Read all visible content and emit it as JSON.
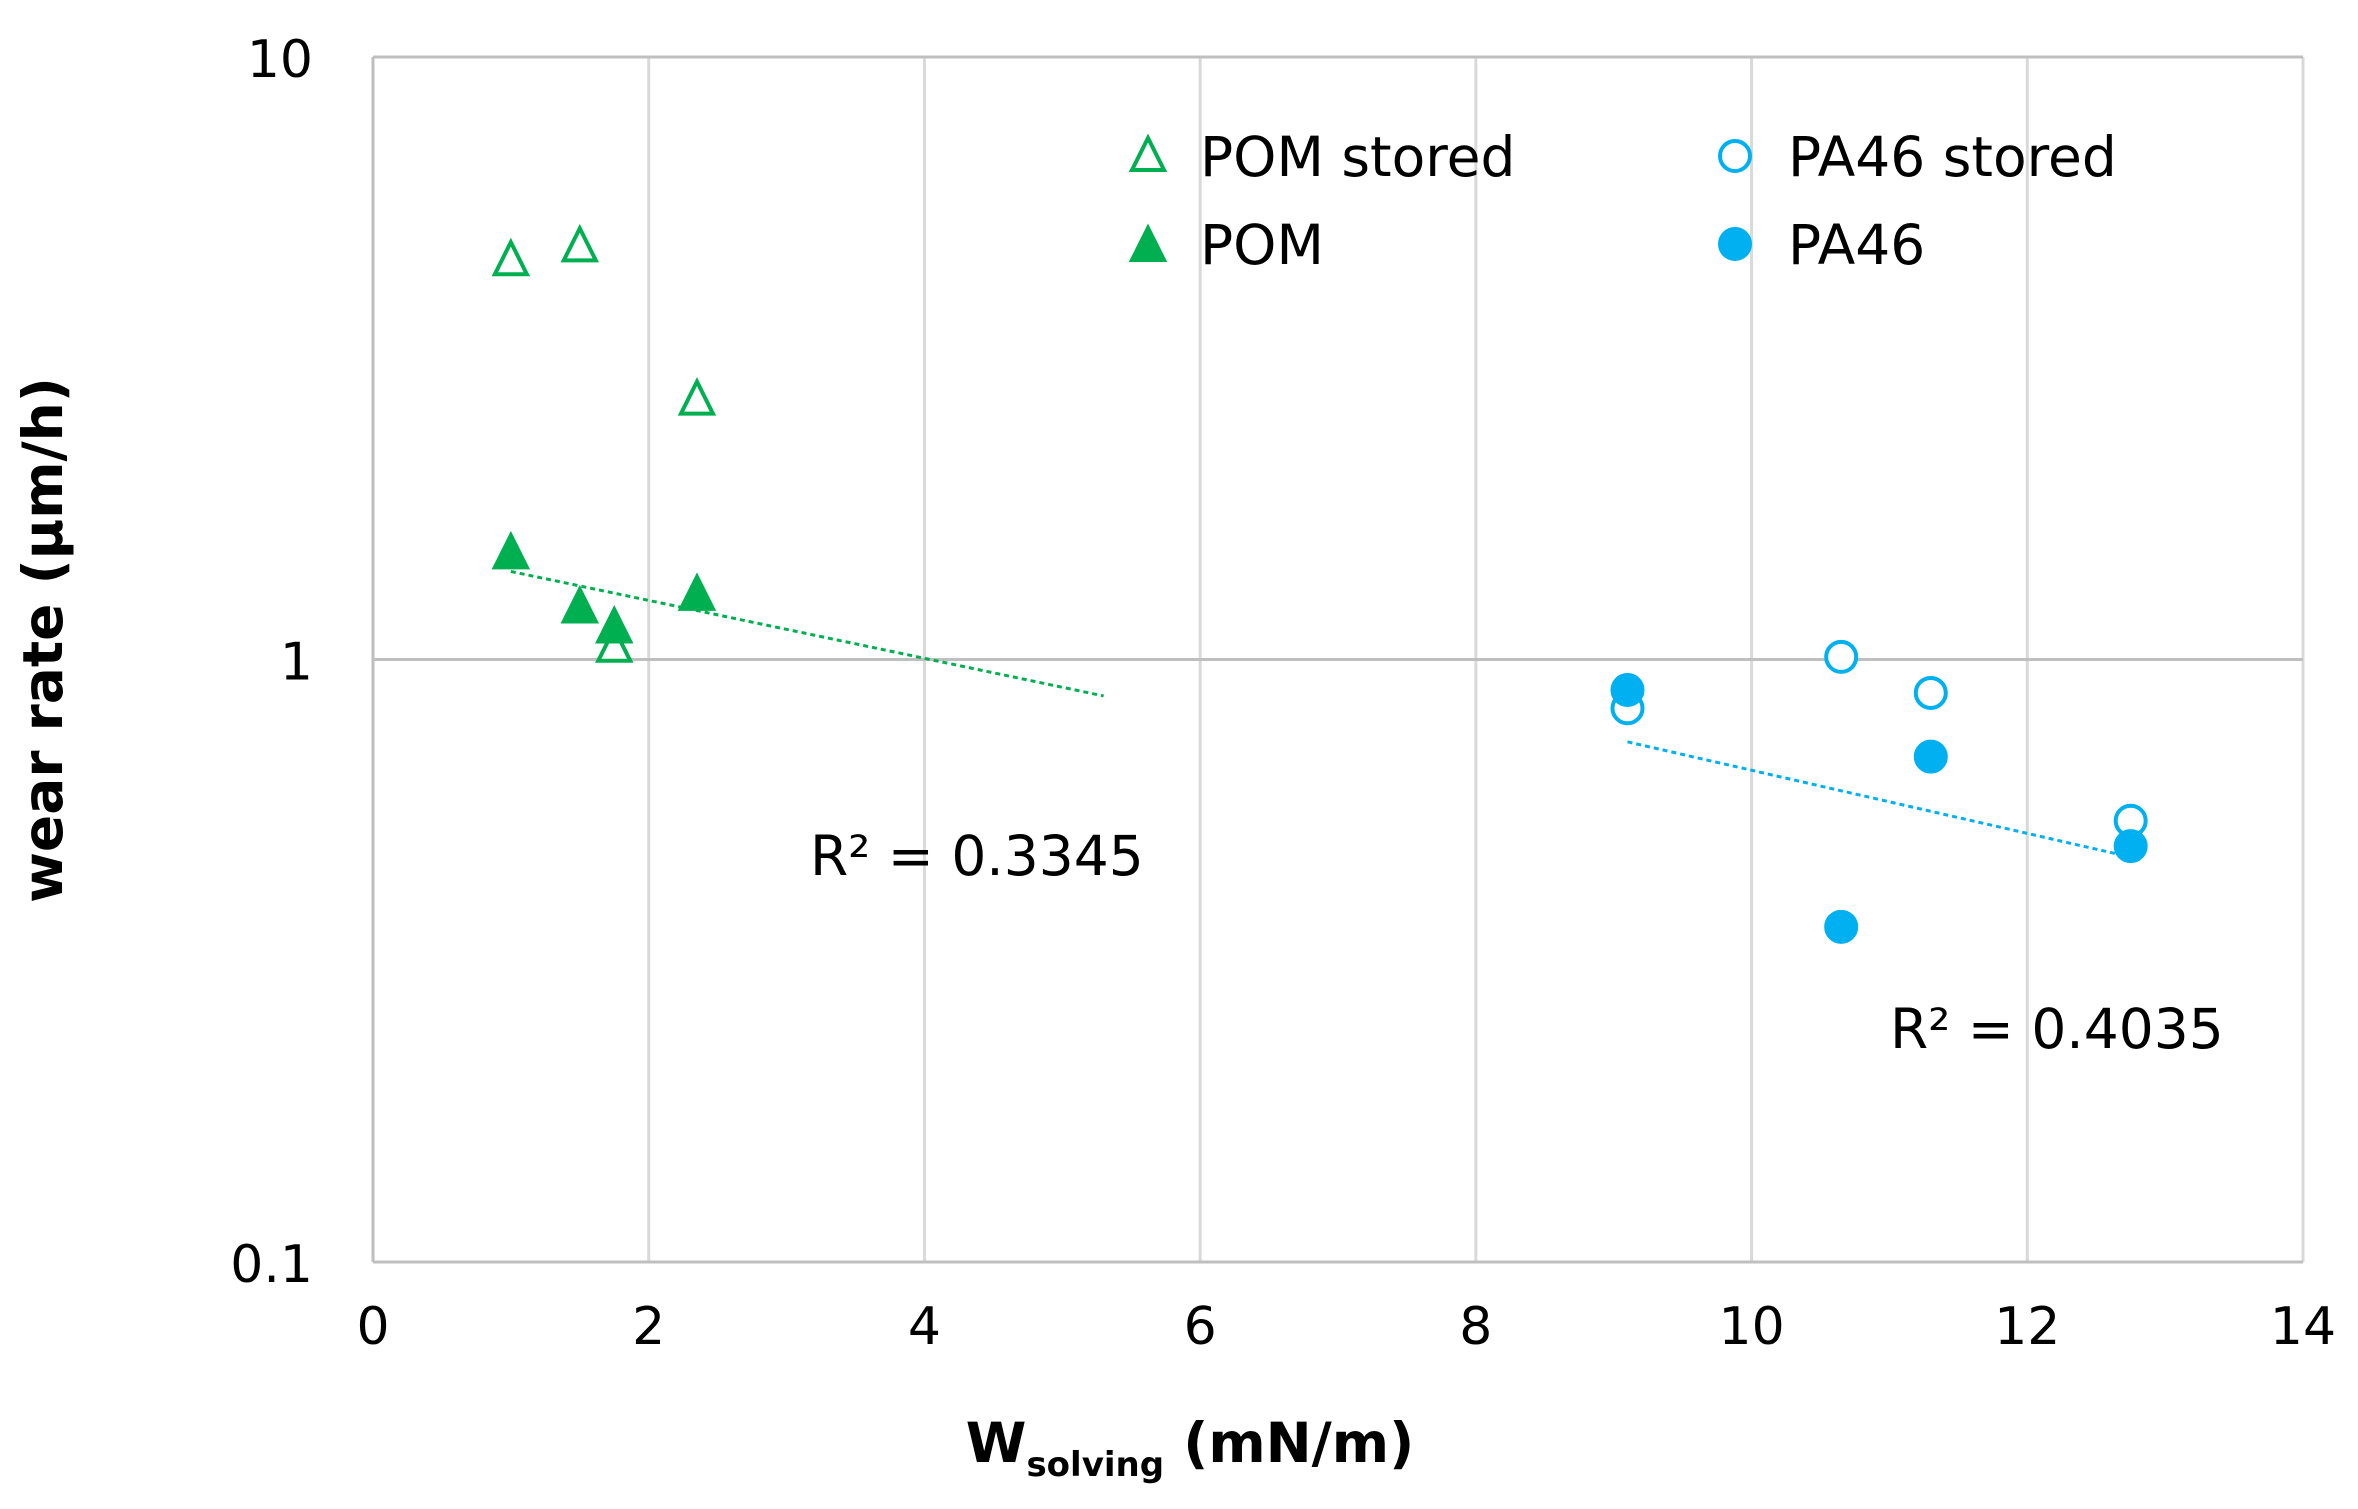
{
  "chart_data": {
    "type": "scatter",
    "title": "",
    "xlabel_main": "W",
    "xlabel_sub": "solving",
    "xlabel_unit": " (mN/m)",
    "ylabel": "wear rate (µm/h)",
    "xlim": [
      0,
      14
    ],
    "ylim": [
      0.1,
      10
    ],
    "yscale": "log",
    "grid": true,
    "x_ticks": [
      0,
      2,
      4,
      6,
      8,
      10,
      12,
      14
    ],
    "x_tick_labels": [
      "0",
      "2",
      "4",
      "6",
      "8",
      "10",
      "12",
      "14"
    ],
    "y_ticks": [
      0.1,
      1,
      10
    ],
    "y_tick_labels": [
      "0.1",
      "1",
      "10"
    ],
    "legend_position": "top-right",
    "colors": {
      "pom": "#00b050",
      "pa46": "#00b0f0",
      "grid": "#d9d9d9",
      "major_grid": "#bfbfbf",
      "axis": "#bfbfbf"
    },
    "series": [
      {
        "name": "POM stored",
        "marker": "triangle",
        "filled": false,
        "color": "#00b050",
        "x": [
          1.0,
          1.5,
          1.75,
          2.35
        ],
        "y": [
          4.6,
          4.85,
          1.05,
          2.7
        ]
      },
      {
        "name": "POM",
        "marker": "triangle",
        "filled": true,
        "color": "#00b050",
        "x": [
          1.0,
          1.5,
          1.75,
          2.35
        ],
        "y": [
          1.5,
          1.22,
          1.13,
          1.28
        ]
      },
      {
        "name": "PA46 stored",
        "marker": "circle",
        "filled": false,
        "color": "#00b0f0",
        "x": [
          9.1,
          10.65,
          11.3,
          12.75
        ],
        "y": [
          0.83,
          1.01,
          0.88,
          0.54
        ]
      },
      {
        "name": "PA46",
        "marker": "circle",
        "filled": true,
        "color": "#00b0f0",
        "x": [
          9.1,
          10.65,
          11.3,
          12.75
        ],
        "y": [
          0.89,
          0.36,
          0.69,
          0.49
        ]
      }
    ],
    "trendlines": [
      {
        "name": "POM trend",
        "color": "#00b050",
        "x": [
          1.0,
          5.3
        ],
        "y": [
          1.4,
          0.87
        ],
        "label": "R² = 0.3345"
      },
      {
        "name": "PA46 trend",
        "color": "#00b0f0",
        "x": [
          9.1,
          12.75
        ],
        "y": [
          0.73,
          0.47
        ],
        "label": "R² = 0.4035"
      }
    ]
  }
}
